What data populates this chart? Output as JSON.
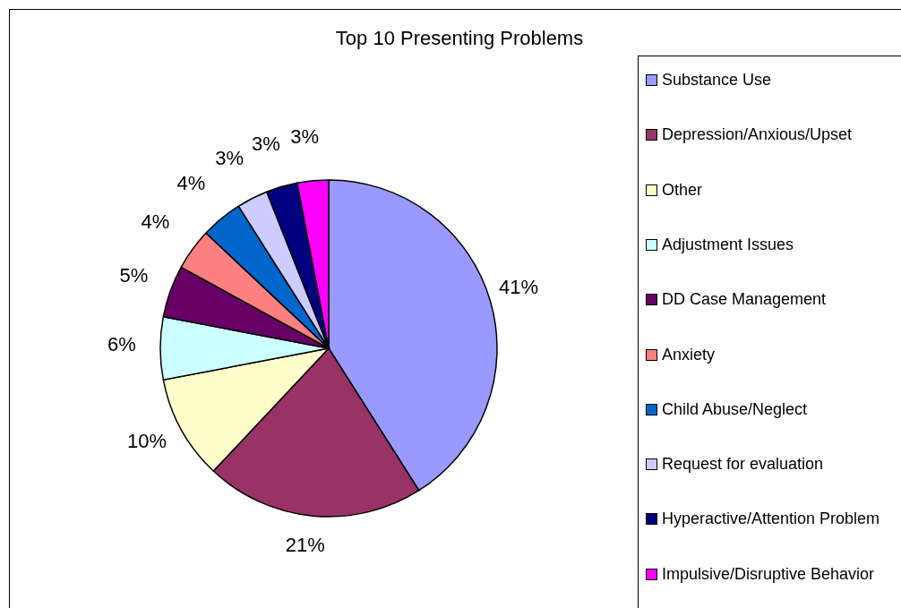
{
  "chart_data": {
    "type": "pie",
    "title": "Top 10 Presenting Problems",
    "categories": [
      "Substance Use",
      "Depression/Anxious/Upset",
      "Other",
      "Adjustment Issues",
      "DD Case Management",
      "Anxiety",
      "Child Abuse/Neglect",
      "Request for evaluation",
      "Hyperactive/Attention Problem",
      "Impulsive/Disruptive Behavior"
    ],
    "values": [
      41,
      21,
      10,
      6,
      5,
      4,
      4,
      3,
      3,
      3
    ],
    "colors": [
      "#9999ff",
      "#993366",
      "#ffffcc",
      "#ccffff",
      "#660066",
      "#ff8080",
      "#0066cc",
      "#ccccff",
      "#000080",
      "#ff00ff"
    ],
    "value_labels": [
      "41%",
      "21%",
      "10%",
      "6%",
      "5%",
      "4%",
      "4%",
      "3%",
      "3%",
      "3%"
    ],
    "legend": "right"
  }
}
